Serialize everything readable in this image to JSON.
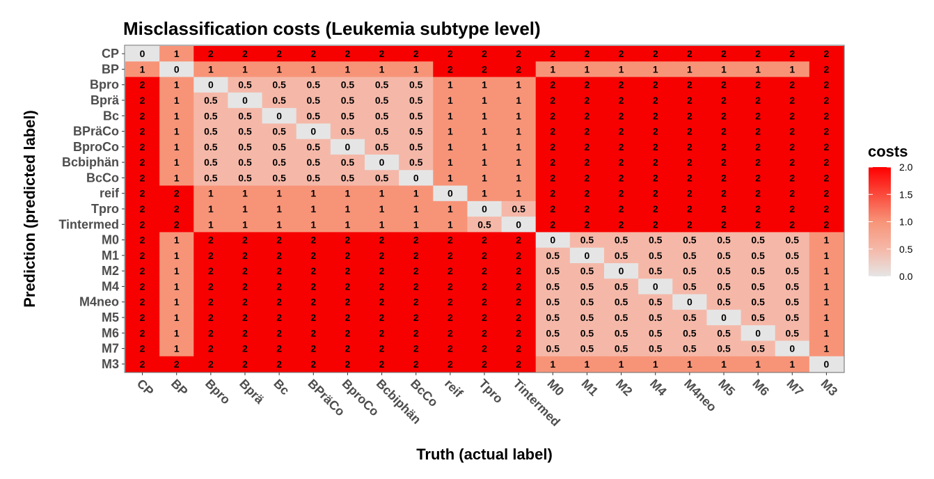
{
  "chart_data": {
    "type": "heatmap",
    "title": "Misclassification costs (Leukemia subtype level)",
    "xlabel": "Truth (actual label)",
    "ylabel": "Prediction (predicted label)",
    "x_categories": [
      "CP",
      "BP",
      "Bpro",
      "Bprä",
      "Bc",
      "BPräCo",
      "BproCo",
      "Bcbiphän",
      "BcCo",
      "reif",
      "Tpro",
      "Tintermed",
      "M0",
      "M1",
      "M2",
      "M4",
      "M4neo",
      "M5",
      "M6",
      "M7",
      "M3"
    ],
    "y_categories": [
      "CP",
      "BP",
      "Bpro",
      "Bprä",
      "Bc",
      "BPräCo",
      "BproCo",
      "Bcbiphän",
      "BcCo",
      "reif",
      "Tpro",
      "Tintermed",
      "M0",
      "M1",
      "M2",
      "M4",
      "M4neo",
      "M5",
      "M6",
      "M7",
      "M3"
    ],
    "values": [
      [
        0,
        1,
        2,
        2,
        2,
        2,
        2,
        2,
        2,
        2,
        2,
        2,
        2,
        2,
        2,
        2,
        2,
        2,
        2,
        2,
        2
      ],
      [
        1,
        0,
        1,
        1,
        1,
        1,
        1,
        1,
        1,
        2,
        2,
        2,
        1,
        1,
        1,
        1,
        1,
        1,
        1,
        1,
        2
      ],
      [
        2,
        1,
        0,
        0.5,
        0.5,
        0.5,
        0.5,
        0.5,
        0.5,
        1,
        1,
        1,
        2,
        2,
        2,
        2,
        2,
        2,
        2,
        2,
        2
      ],
      [
        2,
        1,
        0.5,
        0,
        0.5,
        0.5,
        0.5,
        0.5,
        0.5,
        1,
        1,
        1,
        2,
        2,
        2,
        2,
        2,
        2,
        2,
        2,
        2
      ],
      [
        2,
        1,
        0.5,
        0.5,
        0,
        0.5,
        0.5,
        0.5,
        0.5,
        1,
        1,
        1,
        2,
        2,
        2,
        2,
        2,
        2,
        2,
        2,
        2
      ],
      [
        2,
        1,
        0.5,
        0.5,
        0.5,
        0,
        0.5,
        0.5,
        0.5,
        1,
        1,
        1,
        2,
        2,
        2,
        2,
        2,
        2,
        2,
        2,
        2
      ],
      [
        2,
        1,
        0.5,
        0.5,
        0.5,
        0.5,
        0,
        0.5,
        0.5,
        1,
        1,
        1,
        2,
        2,
        2,
        2,
        2,
        2,
        2,
        2,
        2
      ],
      [
        2,
        1,
        0.5,
        0.5,
        0.5,
        0.5,
        0.5,
        0,
        0.5,
        1,
        1,
        1,
        2,
        2,
        2,
        2,
        2,
        2,
        2,
        2,
        2
      ],
      [
        2,
        1,
        0.5,
        0.5,
        0.5,
        0.5,
        0.5,
        0.5,
        0,
        1,
        1,
        1,
        2,
        2,
        2,
        2,
        2,
        2,
        2,
        2,
        2
      ],
      [
        2,
        2,
        1,
        1,
        1,
        1,
        1,
        1,
        1,
        0,
        1,
        1,
        2,
        2,
        2,
        2,
        2,
        2,
        2,
        2,
        2
      ],
      [
        2,
        2,
        1,
        1,
        1,
        1,
        1,
        1,
        1,
        1,
        0,
        0.5,
        2,
        2,
        2,
        2,
        2,
        2,
        2,
        2,
        2
      ],
      [
        2,
        2,
        1,
        1,
        1,
        1,
        1,
        1,
        1,
        1,
        0.5,
        0,
        2,
        2,
        2,
        2,
        2,
        2,
        2,
        2,
        2
      ],
      [
        2,
        1,
        2,
        2,
        2,
        2,
        2,
        2,
        2,
        2,
        2,
        2,
        0,
        0.5,
        0.5,
        0.5,
        0.5,
        0.5,
        0.5,
        0.5,
        1
      ],
      [
        2,
        1,
        2,
        2,
        2,
        2,
        2,
        2,
        2,
        2,
        2,
        2,
        0.5,
        0,
        0.5,
        0.5,
        0.5,
        0.5,
        0.5,
        0.5,
        1
      ],
      [
        2,
        1,
        2,
        2,
        2,
        2,
        2,
        2,
        2,
        2,
        2,
        2,
        0.5,
        0.5,
        0,
        0.5,
        0.5,
        0.5,
        0.5,
        0.5,
        1
      ],
      [
        2,
        1,
        2,
        2,
        2,
        2,
        2,
        2,
        2,
        2,
        2,
        2,
        0.5,
        0.5,
        0.5,
        0,
        0.5,
        0.5,
        0.5,
        0.5,
        1
      ],
      [
        2,
        1,
        2,
        2,
        2,
        2,
        2,
        2,
        2,
        2,
        2,
        2,
        0.5,
        0.5,
        0.5,
        0.5,
        0,
        0.5,
        0.5,
        0.5,
        1
      ],
      [
        2,
        1,
        2,
        2,
        2,
        2,
        2,
        2,
        2,
        2,
        2,
        2,
        0.5,
        0.5,
        0.5,
        0.5,
        0.5,
        0,
        0.5,
        0.5,
        1
      ],
      [
        2,
        1,
        2,
        2,
        2,
        2,
        2,
        2,
        2,
        2,
        2,
        2,
        0.5,
        0.5,
        0.5,
        0.5,
        0.5,
        0.5,
        0,
        0.5,
        1
      ],
      [
        2,
        1,
        2,
        2,
        2,
        2,
        2,
        2,
        2,
        2,
        2,
        2,
        0.5,
        0.5,
        0.5,
        0.5,
        0.5,
        0.5,
        0.5,
        0,
        1
      ],
      [
        2,
        2,
        2,
        2,
        2,
        2,
        2,
        2,
        2,
        2,
        2,
        2,
        1,
        1,
        1,
        1,
        1,
        1,
        1,
        1,
        0
      ]
    ],
    "value_range": [
      0,
      2
    ],
    "legend": {
      "title": "costs",
      "position": "right",
      "ticks": [
        "0.0",
        "0.5",
        "1.0",
        "1.5",
        "2.0"
      ],
      "low_color": "#e5e5e5",
      "high_color": "#ff0000"
    },
    "level_colors": {
      "0": "#e5e5e5",
      "0.5": "#f5b8a8",
      "1": "#f79478",
      "2": "#f70000"
    }
  }
}
